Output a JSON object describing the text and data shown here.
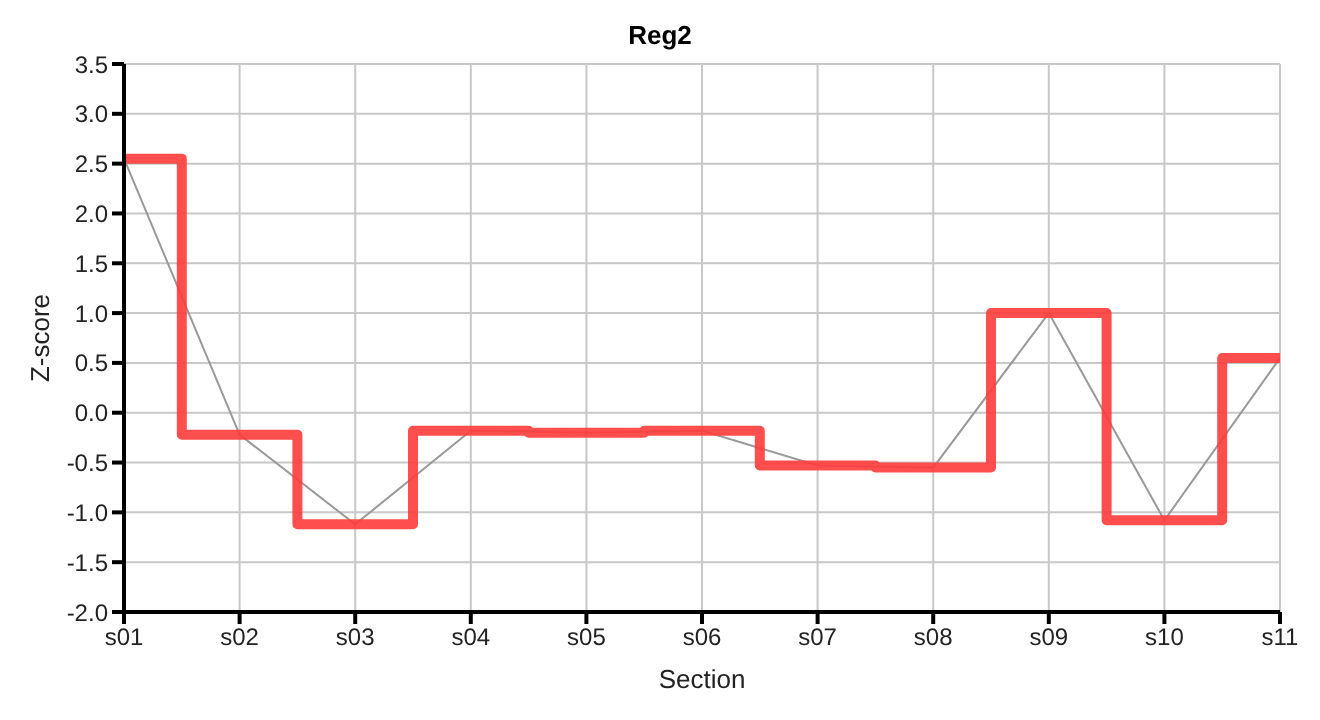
{
  "chart_data": {
    "type": "line",
    "title": "Reg2",
    "xlabel": "Section",
    "ylabel": "Z-score",
    "categories": [
      "s01",
      "s02",
      "s03",
      "s04",
      "s05",
      "s06",
      "s07",
      "s08",
      "s09",
      "s10",
      "s11"
    ],
    "series": [
      {
        "type": "step",
        "color": "#ff3b3b",
        "values": [
          2.55,
          -0.22,
          -1.12,
          -0.18,
          -0.2,
          -0.18,
          -0.53,
          -0.55,
          1.0,
          -1.08,
          0.55
        ]
      },
      {
        "type": "line",
        "color": "#999999",
        "values": [
          2.55,
          -0.22,
          -1.12,
          -0.18,
          -0.2,
          -0.18,
          -0.53,
          -0.55,
          1.0,
          -1.08,
          0.55
        ]
      }
    ],
    "ylim": [
      -2,
      3.5
    ],
    "yticks": [
      {
        "value": -2,
        "label": "-2.0"
      },
      {
        "value": -1.5,
        "label": "-1.5"
      },
      {
        "value": -1,
        "label": "-1.0"
      },
      {
        "value": -0.5,
        "label": "-0.5"
      },
      {
        "value": 0,
        "label": "0.0"
      },
      {
        "value": 0.5,
        "label": "0.5"
      },
      {
        "value": 1,
        "label": "1.0"
      },
      {
        "value": 1.5,
        "label": "1.5"
      },
      {
        "value": 2,
        "label": "2.0"
      },
      {
        "value": 2.5,
        "label": "2.5"
      },
      {
        "value": 3,
        "label": "3.0"
      },
      {
        "value": 3.5,
        "label": "3.5"
      }
    ],
    "grid": true,
    "legend": false,
    "marker": "none",
    "line_style": "solid"
  }
}
